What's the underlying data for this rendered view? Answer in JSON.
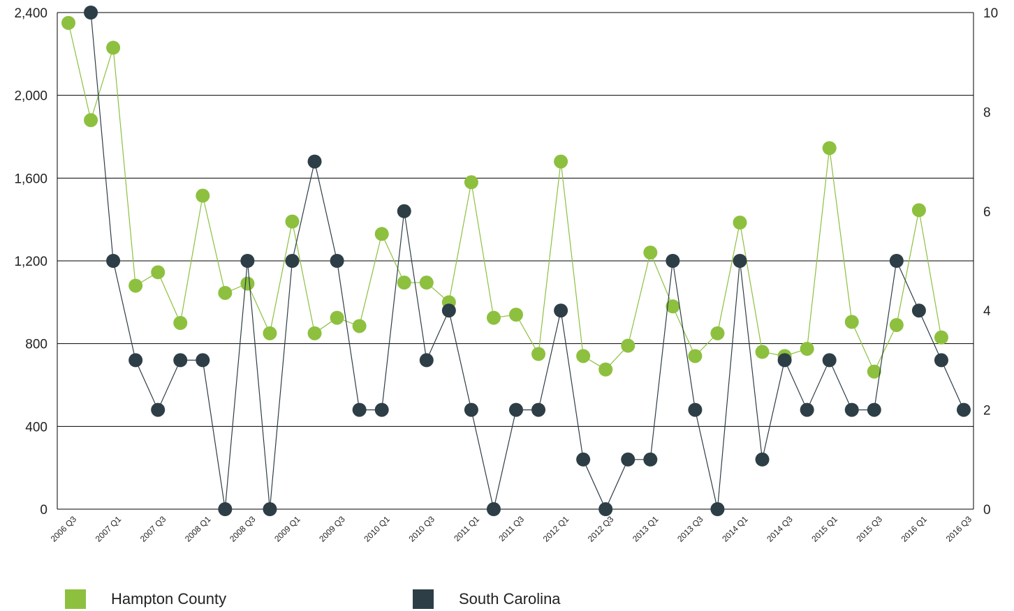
{
  "chart_data": {
    "type": "line",
    "title": "",
    "xlabel": "",
    "ylabel": "",
    "y2label": "",
    "grid": true,
    "legend_position": "bottom",
    "categories": [
      "2006 Q3",
      "2006 Q4",
      "2007 Q1",
      "2007 Q2",
      "2007 Q3",
      "2007 Q4",
      "2008 Q1",
      "2008 Q2",
      "2008 Q3",
      "2008 Q4",
      "2009 Q1",
      "2009 Q2",
      "2009 Q3",
      "2009 Q4",
      "2010 Q1",
      "2010 Q2",
      "2010 Q3",
      "2010 Q4",
      "2011 Q1",
      "2011 Q2",
      "2011 Q3",
      "2011 Q4",
      "2012 Q1",
      "2012 Q2",
      "2012 Q3",
      "2012 Q4",
      "2013 Q1",
      "2013 Q2",
      "2013 Q3",
      "2013 Q4",
      "2014 Q1",
      "2014 Q2",
      "2014 Q3",
      "2014 Q4",
      "2015 Q1",
      "2015 Q2",
      "2015 Q3",
      "2015 Q4",
      "2016 Q1",
      "2016 Q2",
      "2016 Q3"
    ],
    "x_tick_labels": [
      "2006 Q3",
      "2007 Q1",
      "2007 Q3",
      "2008 Q1",
      "2008 Q3",
      "2009 Q1",
      "2009 Q3",
      "2010 Q1",
      "2010 Q3",
      "2011 Q1",
      "2011 Q3",
      "2012 Q1",
      "2012 Q3",
      "2013 Q1",
      "2013 Q3",
      "2014 Q1",
      "2014 Q3",
      "2015 Q1",
      "2015 Q3",
      "2016 Q1",
      "2016 Q3"
    ],
    "y_left": {
      "ylim": [
        0,
        2400
      ],
      "ticks": [
        0,
        400,
        800,
        1200,
        1600,
        2000,
        2400
      ],
      "tick_labels": [
        "0",
        "400",
        "800",
        "1,200",
        "1,600",
        "2,000",
        "2,400"
      ]
    },
    "y_right": {
      "ylim": [
        0,
        10
      ],
      "ticks": [
        0,
        2,
        4,
        6,
        8,
        10
      ],
      "tick_labels": [
        "0",
        "2",
        "4",
        "6",
        "8",
        "10"
      ]
    },
    "series": [
      {
        "name": "Hampton County",
        "axis": "left",
        "color": "#8dc03f",
        "values": [
          2350,
          1880,
          2230,
          1080,
          1145,
          900,
          1515,
          1045,
          1090,
          850,
          1390,
          850,
          925,
          885,
          1330,
          1095,
          1095,
          1000,
          1580,
          925,
          940,
          750,
          1680,
          740,
          675,
          790,
          1240,
          980,
          740,
          850,
          1385,
          760,
          740,
          775,
          1745,
          905,
          665,
          890,
          1445,
          830,
          null
        ]
      },
      {
        "name": "South Carolina",
        "axis": "right",
        "color": "#2d3e46",
        "values": [
          null,
          10,
          5,
          3,
          2,
          3,
          3,
          0,
          5,
          0,
          5,
          7,
          5,
          2,
          2,
          6,
          3,
          4,
          2,
          0,
          2,
          2,
          4,
          1,
          0,
          1,
          1,
          5,
          2,
          0,
          5,
          1,
          3,
          2,
          3,
          2,
          2,
          5,
          4,
          3,
          2
        ]
      }
    ]
  }
}
